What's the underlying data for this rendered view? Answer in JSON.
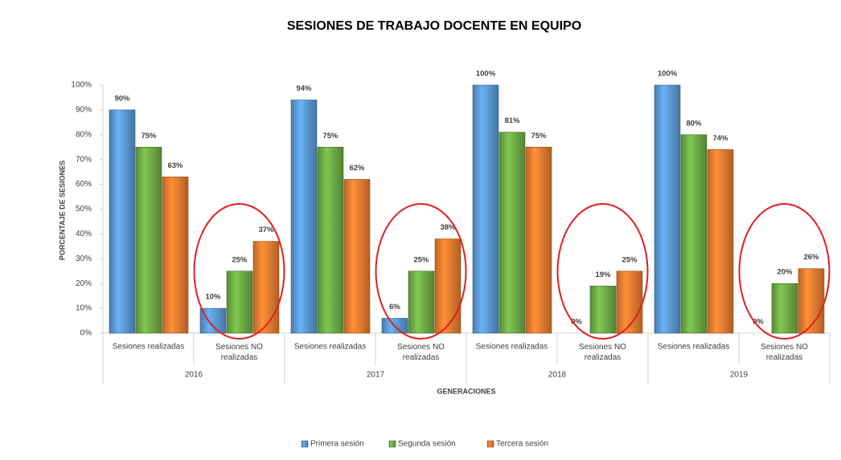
{
  "chart_data": {
    "type": "bar",
    "title": "SESIONES DE TRABAJO DOCENTE EN EQUIPO",
    "x_label": "GENERACIONES",
    "y_label": "PORCENTAJE DE SESIONES",
    "categories": [
      "Sesiones realizadas",
      "Sesiones NO realizadas",
      "Sesiones realizadas",
      "Sesiones NO realizadas",
      "Sesiones realizadas",
      "Sesiones NO realizadas",
      "Sesiones realizadas",
      "Sesiones NO realizadas"
    ],
    "group_labels": [
      "2016",
      "2017",
      "2018",
      "2019"
    ],
    "series": [
      {
        "name": "Primera sesión",
        "color": "#5b9bd5",
        "values": [
          90,
          10,
          94,
          6,
          100,
          0,
          100,
          0
        ],
        "value_labels": [
          "90%",
          "10%",
          "94%",
          "6%",
          "100%",
          "0%",
          "100%",
          "0%"
        ]
      },
      {
        "name": "Segunda sesión",
        "color": "#70ad47",
        "values": [
          75,
          25,
          75,
          25,
          81,
          19,
          80,
          20
        ],
        "value_labels": [
          "75%",
          "25%",
          "75%",
          "25%",
          "81%",
          "19%",
          "80%",
          "20%"
        ]
      },
      {
        "name": "Tercera sesión",
        "color": "#ed7d31",
        "values": [
          63,
          37,
          62,
          38,
          75,
          25,
          74,
          26
        ],
        "value_labels": [
          "63%",
          "37%",
          "62%",
          "38%",
          "75%",
          "25%",
          "74%",
          "26%"
        ]
      }
    ],
    "ylim": [
      0,
      100
    ],
    "yticks": [
      {
        "value": 0,
        "label": "0%"
      },
      {
        "value": 10,
        "label": "10%"
      },
      {
        "value": 20,
        "label": "20%"
      },
      {
        "value": 30,
        "label": "30%"
      },
      {
        "value": 40,
        "label": "40%"
      },
      {
        "value": 50,
        "label": "50%"
      },
      {
        "value": 60,
        "label": "60%"
      },
      {
        "value": 70,
        "label": "70%"
      },
      {
        "value": 80,
        "label": "80%"
      },
      {
        "value": 90,
        "label": "90%"
      },
      {
        "value": 100,
        "label": "100%"
      }
    ],
    "legend": "bottom"
  }
}
